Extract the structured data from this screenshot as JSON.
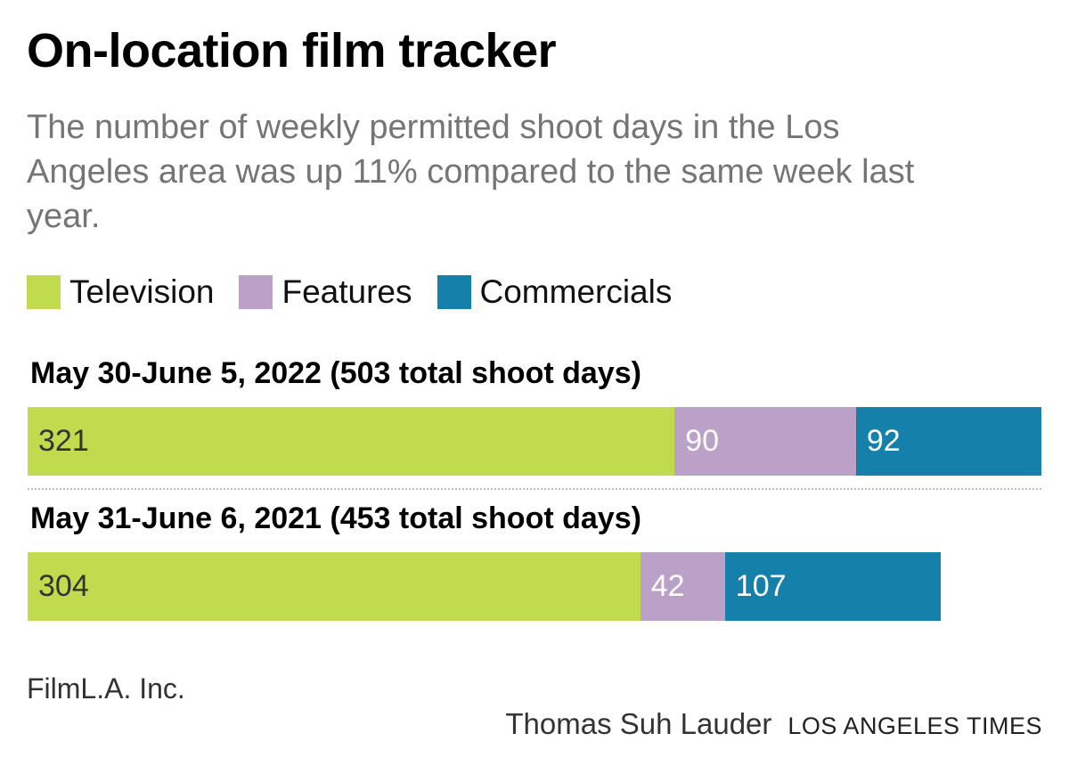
{
  "chart_data": {
    "type": "bar",
    "stacked": true,
    "orientation": "horizontal",
    "title": "On-location film tracker",
    "subtitle": "The number of weekly permitted shoot days in the Los Angeles area was up 11% compared to the same week last year.",
    "legend_position": "top-left",
    "grid": false,
    "categories": [
      "May 30-June 5, 2022 (503 total shoot days)",
      "May 31-June 6, 2021 (453 total shoot days)"
    ],
    "totals": [
      503,
      453
    ],
    "series": [
      {
        "name": "Television",
        "color": "#c1db4f",
        "values": [
          321,
          304
        ]
      },
      {
        "name": "Features",
        "color": "#bba1c8",
        "values": [
          90,
          42
        ]
      },
      {
        "name": "Commercials",
        "color": "#1580a9",
        "values": [
          92,
          107
        ]
      }
    ]
  },
  "source": "FilmL.A. Inc.",
  "credit": {
    "author": "Thomas Suh Lauder",
    "publication": "LOS ANGELES TIMES"
  }
}
